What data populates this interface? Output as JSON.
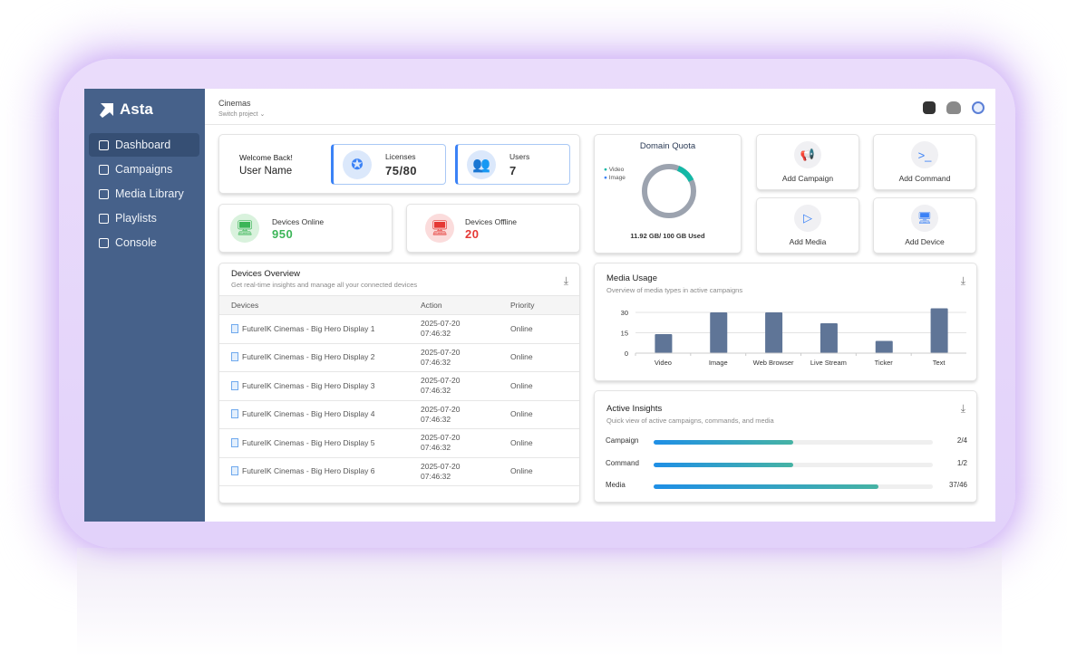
{
  "sidebar": {
    "brand": "Asta",
    "items": [
      {
        "label": "Dashboard",
        "icon": "dashboard-icon",
        "active": true
      },
      {
        "label": "Campaigns",
        "icon": "campaign-icon"
      },
      {
        "label": "Media Library",
        "icon": "media-library-icon"
      },
      {
        "label": "Playlists",
        "icon": "playlist-icon"
      },
      {
        "label": "Console",
        "icon": "console-icon"
      }
    ]
  },
  "header": {
    "project": "Cinemas",
    "switch_label": "Switch project"
  },
  "welcome": {
    "greeting": "Welcome Back!",
    "user": "User Name"
  },
  "licenses": {
    "label": "Licenses",
    "value": "75/80"
  },
  "users": {
    "label": "Users",
    "value": "7"
  },
  "devices_online": {
    "label": "Devices Online",
    "value": "950",
    "color": "#3cb558"
  },
  "devices_offline": {
    "label": "Devices Offline",
    "value": "20",
    "color": "#e53935"
  },
  "quota": {
    "title": "Domain Quota",
    "legend": [
      "Video",
      "Image"
    ],
    "used_text": "11.92 GB/ 100 GB Used",
    "used_fraction": 0.1192,
    "colors": {
      "video": "#14b8a6",
      "image": "#3b82f6",
      "rest": "#9ca3af"
    }
  },
  "actions": [
    "Add Campaign",
    "Add Command",
    "Add Media",
    "Add Device"
  ],
  "devices_overview": {
    "title": "Devices Overview",
    "subtitle": "Get real-time insights and manage all your connected devices",
    "columns": [
      "Devices",
      "Action",
      "Priority"
    ],
    "rows": [
      {
        "device": "FutureIK Cinemas - Big Hero Display 1",
        "date": "2025-07-20",
        "time": "07:46:32",
        "status": "Online"
      },
      {
        "device": "FutureIK Cinemas - Big Hero Display 2",
        "date": "2025-07-20",
        "time": "07:46:32",
        "status": "Online"
      },
      {
        "device": "FutureIK Cinemas - Big Hero Display 3",
        "date": "2025-07-20",
        "time": "07:46:32",
        "status": "Online"
      },
      {
        "device": "FutureIK Cinemas - Big Hero Display 4",
        "date": "2025-07-20",
        "time": "07:46:32",
        "status": "Online"
      },
      {
        "device": "FutureIK Cinemas - Big Hero Display 5",
        "date": "2025-07-20",
        "time": "07:46:32",
        "status": "Online"
      },
      {
        "device": "FutureIK Cinemas - Big Hero Display 6",
        "date": "2025-07-20",
        "time": "07:46:32",
        "status": "Online"
      }
    ]
  },
  "media_usage": {
    "title": "Media Usage",
    "subtitle": "Overview of media types in active campaigns"
  },
  "chart_data": {
    "type": "bar",
    "categories": [
      "Video",
      "Image",
      "Web Browser",
      "Live Stream",
      "Ticker",
      "Text"
    ],
    "values": [
      14,
      30,
      30,
      22,
      9,
      33
    ],
    "yticks": [
      "0",
      "15",
      "30"
    ],
    "ylim": [
      0,
      35
    ],
    "color": "#5f7597",
    "grid": true
  },
  "insights": {
    "title": "Active Insights",
    "subtitle": "Quick view of active campaigns, commands, and media",
    "items": [
      {
        "label": "Campaign",
        "count": "2/4",
        "fraction": 0.5
      },
      {
        "label": "Command",
        "count": "1/2",
        "fraction": 0.5
      },
      {
        "label": "Media",
        "count": "37/46",
        "fraction": 0.804
      }
    ]
  }
}
